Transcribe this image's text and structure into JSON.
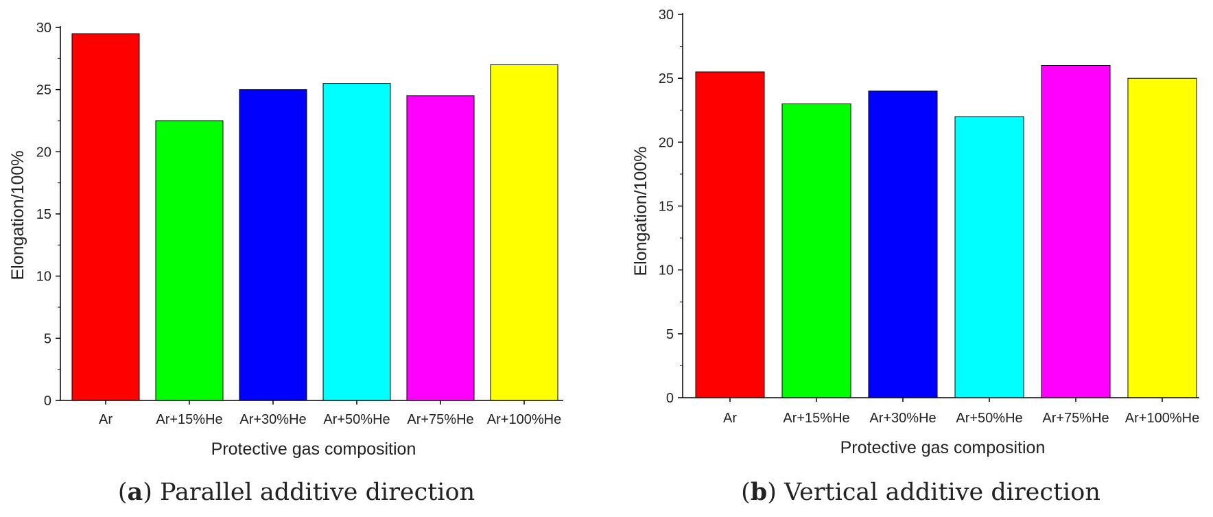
{
  "chart_data": [
    {
      "type": "bar",
      "panel_letter": "a",
      "caption": "Parallel additive direction",
      "xlabel": "Protective gas composition",
      "ylabel": "Elongation/100%",
      "categories": [
        "Ar",
        "Ar+15%He",
        "Ar+30%He",
        "Ar+50%He",
        "Ar+75%He",
        "Ar+100%He"
      ],
      "values": [
        29.5,
        22.5,
        25.0,
        25.5,
        24.5,
        27.0
      ],
      "colors": [
        "#ff0000",
        "#00ff00",
        "#0000ff",
        "#00ffff",
        "#ff00ff",
        "#ffff00"
      ],
      "ylim": [
        0,
        30
      ],
      "yticks": [
        "0",
        "5",
        "10",
        "15",
        "20",
        "25",
        "30"
      ],
      "grid": false,
      "legend": "none"
    },
    {
      "type": "bar",
      "panel_letter": "b",
      "caption": "Vertical additive direction",
      "xlabel": "Protective gas composition",
      "ylabel": "Elongation/100%",
      "categories": [
        "Ar",
        "Ar+15%He",
        "Ar+30%He",
        "Ar+50%He",
        "Ar+75%He",
        "Ar+100%He"
      ],
      "values": [
        25.5,
        23.0,
        24.0,
        22.0,
        26.0,
        25.0
      ],
      "colors": [
        "#ff0000",
        "#00ff00",
        "#0000ff",
        "#00ffff",
        "#ff00ff",
        "#ffff00"
      ],
      "ylim": [
        0,
        30
      ],
      "yticks": [
        "0",
        "5",
        "10",
        "15",
        "20",
        "25",
        "30"
      ],
      "grid": false,
      "legend": "none"
    }
  ]
}
